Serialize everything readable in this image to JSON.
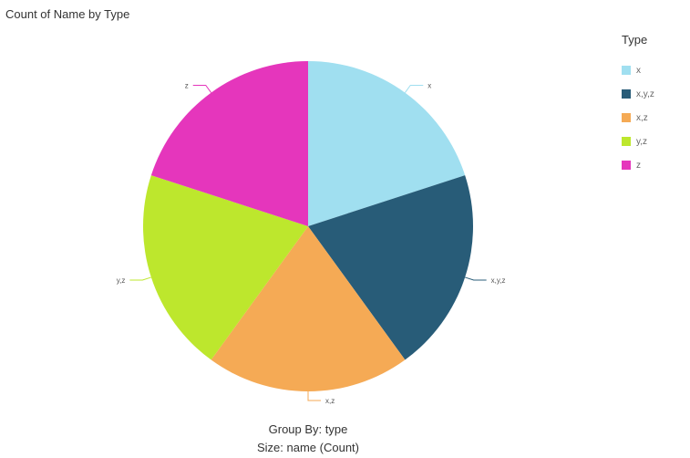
{
  "chart_data": {
    "type": "pie",
    "title": "Count of Name by Type",
    "categories": [
      "x",
      "x,y,z",
      "x,z",
      "y,z",
      "z"
    ],
    "values": [
      1,
      1,
      1,
      1,
      1
    ],
    "colors": [
      "#a0dff0",
      "#285c78",
      "#f5aa55",
      "#bde72d",
      "#e536bc"
    ],
    "legend": {
      "title": "Type",
      "position": "top-right"
    },
    "footer": {
      "group_by": "Group By: type",
      "size": "Size: name (Count)"
    }
  }
}
